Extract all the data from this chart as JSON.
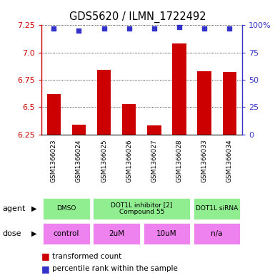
{
  "title": "GDS5620 / ILMN_1722492",
  "samples": [
    "GSM1366023",
    "GSM1366024",
    "GSM1366025",
    "GSM1366026",
    "GSM1366027",
    "GSM1366028",
    "GSM1366033",
    "GSM1366034"
  ],
  "bar_values": [
    6.62,
    6.34,
    6.84,
    6.53,
    6.33,
    7.08,
    6.83,
    6.82
  ],
  "percentile_values": [
    97,
    95,
    97,
    97,
    97,
    98,
    97,
    97
  ],
  "ylim_left": [
    6.25,
    7.25
  ],
  "ylim_right": [
    0,
    100
  ],
  "yticks_left": [
    6.25,
    6.5,
    6.75,
    7.0,
    7.25
  ],
  "yticks_right": [
    0,
    25,
    50,
    75,
    100
  ],
  "bar_color": "#cc0000",
  "dot_color": "#3333cc",
  "bar_width": 0.55,
  "agent_labels": [
    "DMSO",
    "DOT1L inhibitor [2]\nCompound 55",
    "DOT1L siRNA"
  ],
  "agent_boundaries": [
    0,
    2,
    6,
    8
  ],
  "agent_color": "#90ee90",
  "dose_labels": [
    "control",
    "2uM",
    "10uM",
    "n/a"
  ],
  "dose_boundaries": [
    0,
    2,
    4,
    6,
    8
  ],
  "dose_color": "#ee82ee",
  "grid_color": "#555555",
  "tick_color_left": "#cc0000",
  "tick_color_right": "#3333cc",
  "legend_red_label": "transformed count",
  "legend_blue_label": "percentile rank within the sample",
  "sample_bg_color": "#cccccc"
}
